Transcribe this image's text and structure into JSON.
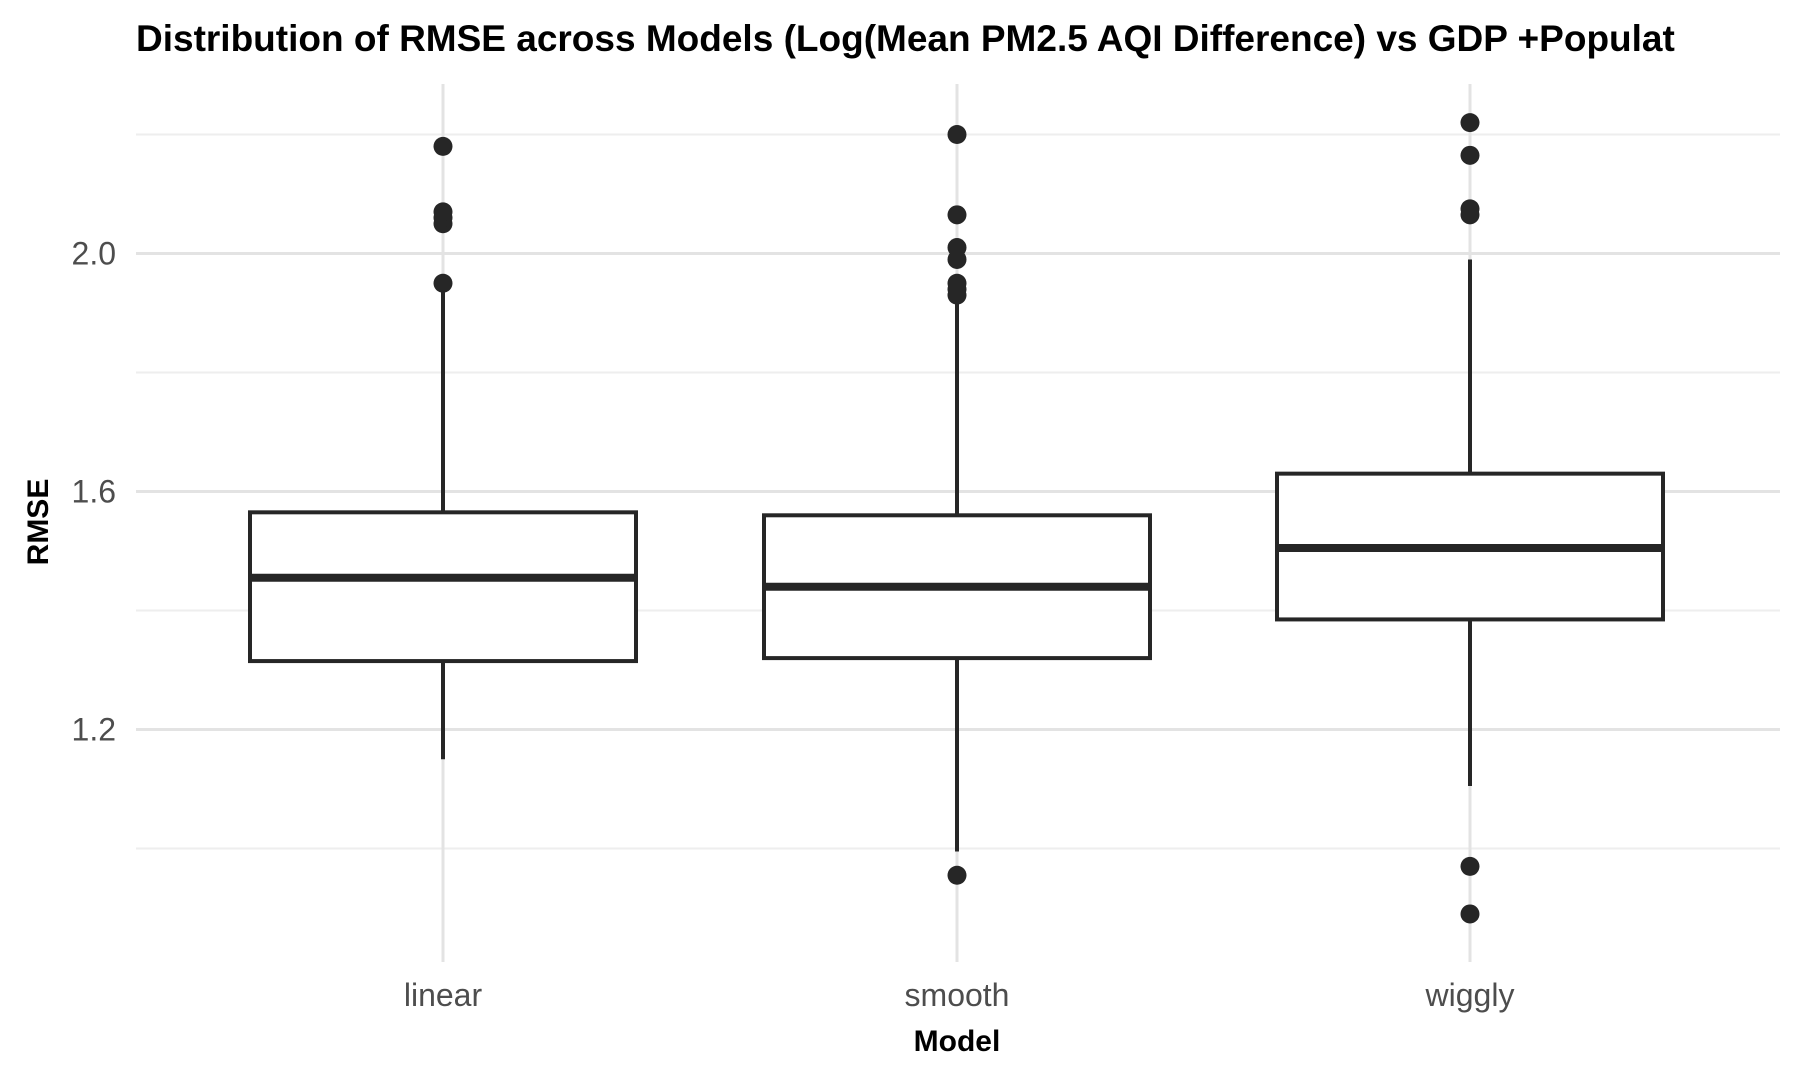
{
  "chart_data": {
    "type": "boxplot",
    "title": "Distribution of RMSE across Models (Log(Mean PM2.5 AQI Difference) vs GDP +Populat",
    "xlabel": "Model",
    "ylabel": "RMSE",
    "ylim": [
      0.85,
      2.28
    ],
    "yticks": [
      1.2,
      1.6,
      2.0
    ],
    "grid": true,
    "categories": [
      "linear",
      "smooth",
      "wiggly"
    ],
    "boxes": [
      {
        "category": "linear",
        "whisker_low": 1.15,
        "q1": 1.315,
        "median": 1.455,
        "q3": 1.565,
        "whisker_high": 1.94,
        "outliers": [
          1.95,
          2.05,
          2.06,
          2.07,
          2.18
        ]
      },
      {
        "category": "smooth",
        "whisker_low": 0.995,
        "q1": 1.32,
        "median": 1.44,
        "q3": 1.56,
        "whisker_high": 1.92,
        "outliers": [
          0.955,
          1.93,
          1.94,
          1.95,
          1.99,
          2.01,
          2.065,
          2.2
        ]
      },
      {
        "category": "wiggly",
        "whisker_low": 1.105,
        "q1": 1.385,
        "median": 1.505,
        "q3": 1.63,
        "whisker_high": 1.99,
        "outliers": [
          0.89,
          0.97,
          2.065,
          2.075,
          2.165,
          2.22
        ]
      }
    ],
    "colors": {
      "box_line": "#262626",
      "box_fill": "#ffffff",
      "grid_major": "#e3e3e3",
      "grid_minor": "#eeeeee"
    }
  }
}
